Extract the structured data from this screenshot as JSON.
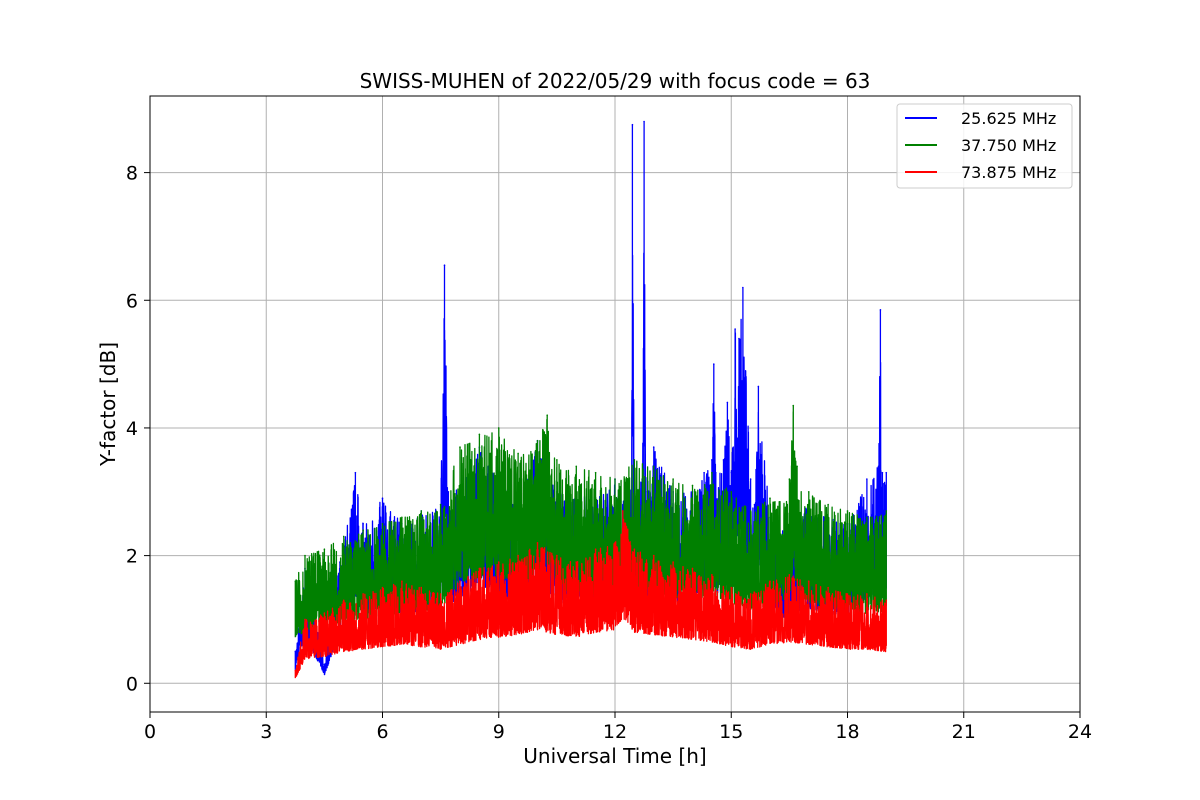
{
  "chart_data": {
    "type": "line",
    "title": "SWISS-MUHEN of 2022/05/29 with focus code = 63",
    "xlabel": "Universal Time [h]",
    "ylabel": "Y-factor [dB]",
    "xlim": [
      0,
      24
    ],
    "ylim": [
      -0.45,
      9.2
    ],
    "xticks": [
      0,
      3,
      6,
      9,
      12,
      15,
      18,
      21,
      24
    ],
    "yticks": [
      0,
      2,
      4,
      6,
      8
    ],
    "grid": true,
    "legend_position": "top-right",
    "series": [
      {
        "name": "25.625 MHz",
        "color": "#0000ff",
        "x": [
          3.75,
          4.0,
          4.5,
          4.9,
          5.3,
          5.5,
          6.0,
          6.5,
          7.0,
          7.5,
          7.6,
          7.7,
          8.0,
          8.5,
          9.0,
          9.5,
          10.0,
          10.5,
          11.0,
          11.5,
          12.0,
          12.4,
          12.45,
          12.5,
          12.7,
          12.75,
          12.8,
          13.0,
          13.5,
          14.0,
          14.3,
          14.5,
          14.55,
          14.6,
          14.8,
          14.9,
          15.0,
          15.1,
          15.2,
          15.3,
          15.5,
          15.6,
          15.7,
          16.0,
          16.5,
          17.0,
          17.5,
          18.0,
          18.5,
          18.8,
          18.85,
          18.9,
          19.0
        ],
        "y": [
          0.5,
          1.8,
          0.3,
          1.9,
          3.3,
          2.5,
          2.9,
          2.5,
          2.7,
          2.8,
          6.55,
          3.0,
          3.1,
          3.7,
          3.3,
          2.7,
          3.8,
          3.0,
          3.0,
          2.9,
          3.2,
          2.6,
          8.75,
          3.0,
          3.2,
          8.8,
          3.0,
          3.7,
          3.0,
          3.0,
          3.3,
          3.5,
          5.0,
          3.3,
          3.5,
          4.4,
          3.3,
          5.55,
          5.4,
          6.2,
          3.2,
          2.8,
          4.65,
          2.6,
          2.4,
          2.8,
          2.6,
          2.5,
          3.2,
          3.4,
          5.85,
          3.3,
          3.3
        ]
      },
      {
        "name": "37.750 MHz",
        "color": "#008000",
        "x": [
          3.75,
          4.0,
          4.5,
          5.0,
          5.5,
          6.0,
          6.5,
          7.0,
          7.5,
          8.0,
          8.5,
          9.0,
          9.5,
          10.0,
          10.25,
          10.5,
          11.0,
          11.5,
          12.0,
          12.5,
          13.0,
          13.5,
          14.0,
          14.5,
          15.0,
          15.5,
          16.0,
          16.5,
          16.6,
          16.7,
          17.0,
          17.5,
          18.0,
          18.5,
          19.0
        ],
        "y": [
          1.6,
          2.0,
          2.1,
          2.3,
          2.4,
          2.5,
          2.6,
          2.7,
          2.8,
          3.7,
          3.9,
          4.0,
          3.6,
          3.8,
          4.2,
          3.5,
          3.4,
          3.3,
          3.2,
          3.5,
          3.4,
          3.2,
          3.1,
          3.3,
          3.0,
          2.7,
          2.9,
          3.2,
          4.35,
          3.4,
          3.0,
          2.8,
          2.7,
          2.6,
          2.7
        ]
      },
      {
        "name": "73.875 MHz",
        "color": "#ff0000",
        "x": [
          3.75,
          4.0,
          4.5,
          5.0,
          5.5,
          6.0,
          6.5,
          7.0,
          7.5,
          8.0,
          8.5,
          9.0,
          9.5,
          10.0,
          10.5,
          11.0,
          11.5,
          12.0,
          12.2,
          12.5,
          13.0,
          13.5,
          14.0,
          14.5,
          15.0,
          15.5,
          16.0,
          16.5,
          17.0,
          17.5,
          18.0,
          18.5,
          19.0
        ],
        "y": [
          0.2,
          1.0,
          1.1,
          1.3,
          1.4,
          1.5,
          1.6,
          1.5,
          1.4,
          1.6,
          1.8,
          1.9,
          2.0,
          2.2,
          2.0,
          1.9,
          2.1,
          2.2,
          2.7,
          2.1,
          2.0,
          1.9,
          1.8,
          1.7,
          1.5,
          1.4,
          1.6,
          1.7,
          1.6,
          1.5,
          1.4,
          1.4,
          1.3
        ]
      }
    ]
  }
}
